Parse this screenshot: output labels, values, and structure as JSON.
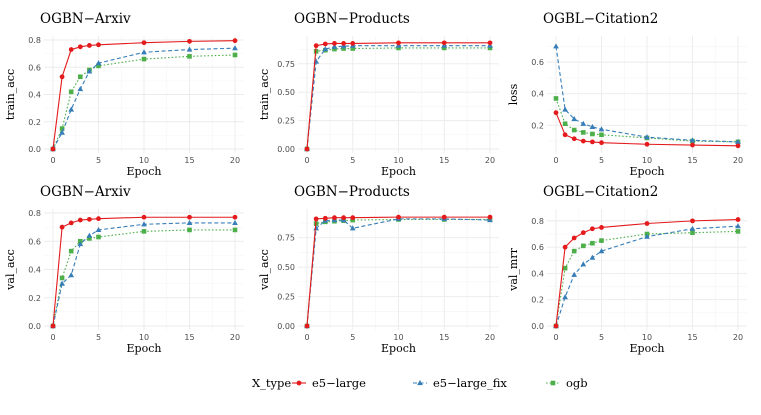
{
  "chart_data": [
    {
      "type": "line",
      "title": "OGBN−Arxiv",
      "xlabel": "Epoch",
      "ylabel": "train_acc",
      "xlim": [
        0,
        20
      ],
      "ylim": [
        0,
        0.8
      ],
      "xticks": [
        "0",
        "5",
        "10",
        "15",
        "20"
      ],
      "yticks": [
        "0.0",
        "0.2",
        "0.4",
        "0.6",
        "0.8"
      ],
      "ytick_values": [
        0,
        0.2,
        0.4,
        0.6,
        0.8
      ],
      "series": [
        {
          "name": "e5−large",
          "x": [
            0,
            1,
            2,
            3,
            4,
            5,
            10,
            15,
            20
          ],
          "values": [
            0,
            0.53,
            0.73,
            0.75,
            0.76,
            0.765,
            0.78,
            0.79,
            0.795
          ]
        },
        {
          "name": "e5−large_fix",
          "x": [
            0,
            1,
            2,
            3,
            4,
            5,
            10,
            15,
            20
          ],
          "values": [
            0,
            0.12,
            0.29,
            0.44,
            0.57,
            0.63,
            0.71,
            0.73,
            0.74
          ]
        },
        {
          "name": "ogb",
          "x": [
            0,
            1,
            2,
            3,
            4,
            5,
            10,
            15,
            20
          ],
          "values": [
            0,
            0.15,
            0.42,
            0.53,
            0.58,
            0.61,
            0.66,
            0.68,
            0.69
          ]
        }
      ]
    },
    {
      "type": "line",
      "title": "OGBN−Products",
      "xlabel": "Epoch",
      "ylabel": "train_acc",
      "xlim": [
        0,
        20
      ],
      "ylim": [
        0,
        0.96
      ],
      "xticks": [
        "0",
        "5",
        "10",
        "15",
        "20"
      ],
      "yticks": [
        "0.00",
        "0.25",
        "0.50",
        "0.75"
      ],
      "ytick_values": [
        0,
        0.25,
        0.5,
        0.75
      ],
      "series": [
        {
          "name": "e5−large",
          "x": [
            0,
            1,
            2,
            3,
            4,
            5,
            10,
            15,
            20
          ],
          "values": [
            0,
            0.91,
            0.925,
            0.93,
            0.93,
            0.93,
            0.935,
            0.935,
            0.935
          ]
        },
        {
          "name": "e5−large_fix",
          "x": [
            0,
            1,
            2,
            3,
            4,
            5,
            10,
            15,
            20
          ],
          "values": [
            0,
            0.77,
            0.88,
            0.9,
            0.905,
            0.91,
            0.91,
            0.91,
            0.91
          ]
        },
        {
          "name": "ogb",
          "x": [
            0,
            1,
            2,
            3,
            4,
            5,
            10,
            15,
            20
          ],
          "values": [
            0,
            0.86,
            0.87,
            0.88,
            0.885,
            0.885,
            0.89,
            0.89,
            0.89
          ]
        }
      ]
    },
    {
      "type": "line",
      "title": "OGBL−Citation2",
      "xlabel": "Epoch",
      "ylabel": "loss",
      "xlim": [
        0,
        20
      ],
      "ylim": [
        0.05,
        0.74
      ],
      "xticks": [
        "0",
        "5",
        "10",
        "15",
        "20"
      ],
      "yticks": [
        "0.2",
        "0.4",
        "0.6"
      ],
      "ytick_values": [
        0.2,
        0.4,
        0.6
      ],
      "series": [
        {
          "name": "e5−large",
          "x": [
            0,
            1,
            2,
            3,
            4,
            5,
            10,
            15,
            20
          ],
          "values": [
            0.28,
            0.14,
            0.115,
            0.1,
            0.095,
            0.09,
            0.08,
            0.075,
            0.07
          ]
        },
        {
          "name": "e5−large_fix",
          "x": [
            0,
            1,
            2,
            3,
            4,
            5,
            10,
            15,
            20
          ],
          "values": [
            0.7,
            0.3,
            0.24,
            0.21,
            0.19,
            0.175,
            0.125,
            0.105,
            0.095
          ]
        },
        {
          "name": "ogb",
          "x": [
            0,
            1,
            2,
            3,
            4,
            5,
            10,
            15,
            20
          ],
          "values": [
            0.37,
            0.21,
            0.17,
            0.155,
            0.145,
            0.14,
            0.12,
            0.1,
            0.095
          ]
        }
      ]
    },
    {
      "type": "line",
      "title": "OGBN−Arxiv",
      "xlabel": "Epoch",
      "ylabel": "val_acc",
      "xlim": [
        0,
        20
      ],
      "ylim": [
        0,
        0.8
      ],
      "xticks": [
        "0",
        "5",
        "10",
        "15",
        "20"
      ],
      "yticks": [
        "0.0",
        "0.2",
        "0.4",
        "0.6",
        "0.8"
      ],
      "ytick_values": [
        0,
        0.2,
        0.4,
        0.6,
        0.8
      ],
      "series": [
        {
          "name": "e5−large",
          "x": [
            0,
            1,
            2,
            3,
            4,
            5,
            10,
            15,
            20
          ],
          "values": [
            0,
            0.7,
            0.73,
            0.75,
            0.755,
            0.76,
            0.77,
            0.77,
            0.77
          ]
        },
        {
          "name": "e5−large_fix",
          "x": [
            0,
            1,
            2,
            3,
            4,
            5,
            10,
            15,
            20
          ],
          "values": [
            0,
            0.3,
            0.36,
            0.58,
            0.64,
            0.68,
            0.72,
            0.73,
            0.73
          ]
        },
        {
          "name": "ogb",
          "x": [
            0,
            1,
            2,
            3,
            4,
            5,
            10,
            15,
            20
          ],
          "values": [
            0,
            0.34,
            0.53,
            0.6,
            0.62,
            0.63,
            0.67,
            0.68,
            0.68
          ]
        }
      ]
    },
    {
      "type": "line",
      "title": "OGBN−Products",
      "xlabel": "Epoch",
      "ylabel": "val_acc",
      "xlim": [
        0,
        20
      ],
      "ylim": [
        0,
        0.96
      ],
      "xticks": [
        "0",
        "5",
        "10",
        "15",
        "20"
      ],
      "yticks": [
        "0.00",
        "0.25",
        "0.50",
        "0.75"
      ],
      "ytick_values": [
        0,
        0.25,
        0.5,
        0.75
      ],
      "series": [
        {
          "name": "e5−large",
          "x": [
            0,
            1,
            2,
            3,
            4,
            5,
            10,
            15,
            20
          ],
          "values": [
            0,
            0.91,
            0.915,
            0.92,
            0.92,
            0.92,
            0.925,
            0.925,
            0.925
          ]
        },
        {
          "name": "e5−large_fix",
          "x": [
            0,
            1,
            2,
            3,
            4,
            5,
            10,
            15,
            20
          ],
          "values": [
            0,
            0.83,
            0.895,
            0.9,
            0.9,
            0.83,
            0.91,
            0.91,
            0.9
          ]
        },
        {
          "name": "ogb",
          "x": [
            0,
            1,
            2,
            3,
            4,
            5,
            10,
            15,
            20
          ],
          "values": [
            0,
            0.87,
            0.885,
            0.89,
            0.895,
            0.9,
            0.905,
            0.905,
            0.905
          ]
        }
      ]
    },
    {
      "type": "line",
      "title": "OGBL−Citation2",
      "xlabel": "Epoch",
      "ylabel": "val_mrr",
      "xlim": [
        0,
        20
      ],
      "ylim": [
        0,
        0.86
      ],
      "xticks": [
        "0",
        "5",
        "10",
        "15",
        "20"
      ],
      "yticks": [
        "0.0",
        "0.2",
        "0.4",
        "0.6",
        "0.8"
      ],
      "ytick_values": [
        0,
        0.2,
        0.4,
        0.6,
        0.8
      ],
      "series": [
        {
          "name": "e5−large",
          "x": [
            0,
            1,
            2,
            3,
            4,
            5,
            10,
            15,
            20
          ],
          "values": [
            0,
            0.6,
            0.67,
            0.71,
            0.74,
            0.75,
            0.78,
            0.8,
            0.81
          ]
        },
        {
          "name": "e5−large_fix",
          "x": [
            0,
            1,
            2,
            3,
            4,
            5,
            10,
            15,
            20
          ],
          "values": [
            0,
            0.22,
            0.39,
            0.47,
            0.52,
            0.57,
            0.68,
            0.74,
            0.76
          ]
        },
        {
          "name": "ogb",
          "x": [
            0,
            1,
            2,
            3,
            4,
            5,
            10,
            15,
            20
          ],
          "values": [
            0,
            0.44,
            0.57,
            0.61,
            0.63,
            0.65,
            0.7,
            0.71,
            0.72
          ]
        }
      ]
    }
  ],
  "legend": {
    "title": "X_type",
    "position": "bottom",
    "items": [
      {
        "label": "e5−large",
        "color": "#e41a1c",
        "shape": "circle",
        "dash": "solid"
      },
      {
        "label": "e5−large_fix",
        "color": "#377eb8",
        "shape": "triangle",
        "dash": "dashed"
      },
      {
        "label": "ogb",
        "color": "#4daf4a",
        "shape": "square",
        "dash": "dotted"
      }
    ]
  }
}
